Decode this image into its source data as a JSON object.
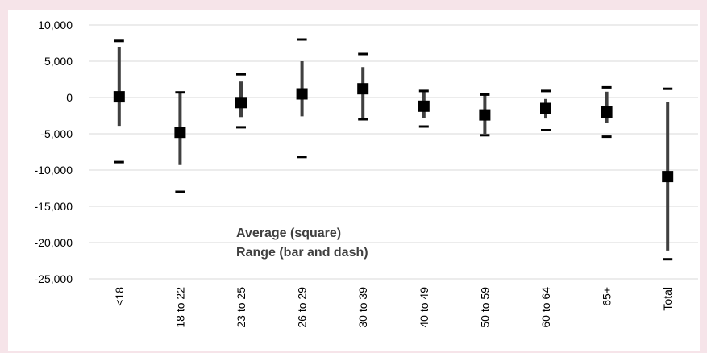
{
  "chart_data": {
    "type": "range",
    "categories": [
      "<18",
      "18 to 22",
      "23 to 25",
      "26 to 29",
      "30 to 39",
      "40 to 49",
      "50 to 59",
      "60 to 64",
      "65+",
      "Total"
    ],
    "series": [
      {
        "name": "Average (square)",
        "color": "#000000",
        "values": [
          100,
          -4800,
          -700,
          500,
          1200,
          -1200,
          -2400,
          -1500,
          -2000,
          -10900
        ]
      },
      {
        "name": "Bar high",
        "color": "#404040",
        "values": [
          7000,
          600,
          2200,
          5000,
          4200,
          800,
          300,
          -200,
          800,
          -600
        ]
      },
      {
        "name": "Bar low",
        "color": "#404040",
        "values": [
          -3900,
          -9300,
          -2700,
          -2600,
          -3000,
          -2800,
          -5000,
          -2900,
          -3500,
          -21100
        ]
      },
      {
        "name": "Dash high",
        "color": "#000000",
        "values": [
          7800,
          700,
          3200,
          8000,
          6000,
          900,
          400,
          900,
          1400,
          1200
        ]
      },
      {
        "name": "Dash low",
        "color": "#000000",
        "values": [
          -8900,
          -13000,
          -4100,
          -8200,
          -3000,
          -4000,
          -5200,
          -4500,
          -5400,
          -22300
        ]
      }
    ],
    "annotations": [
      "Average (square)",
      "Range (bar and dash)"
    ],
    "ylim": [
      -25000,
      10000
    ],
    "yticks": [
      {
        "value": -25000,
        "label": "-25,000"
      },
      {
        "value": -20000,
        "label": "-20,000"
      },
      {
        "value": -15000,
        "label": "-15,000"
      },
      {
        "value": -10000,
        "label": "-10,000"
      },
      {
        "value": -5000,
        "label": "-5,000"
      },
      0,
      {
        "value": 5000,
        "label": "5,000"
      },
      {
        "value": 10000,
        "label": "10,000"
      }
    ],
    "grid": true
  }
}
